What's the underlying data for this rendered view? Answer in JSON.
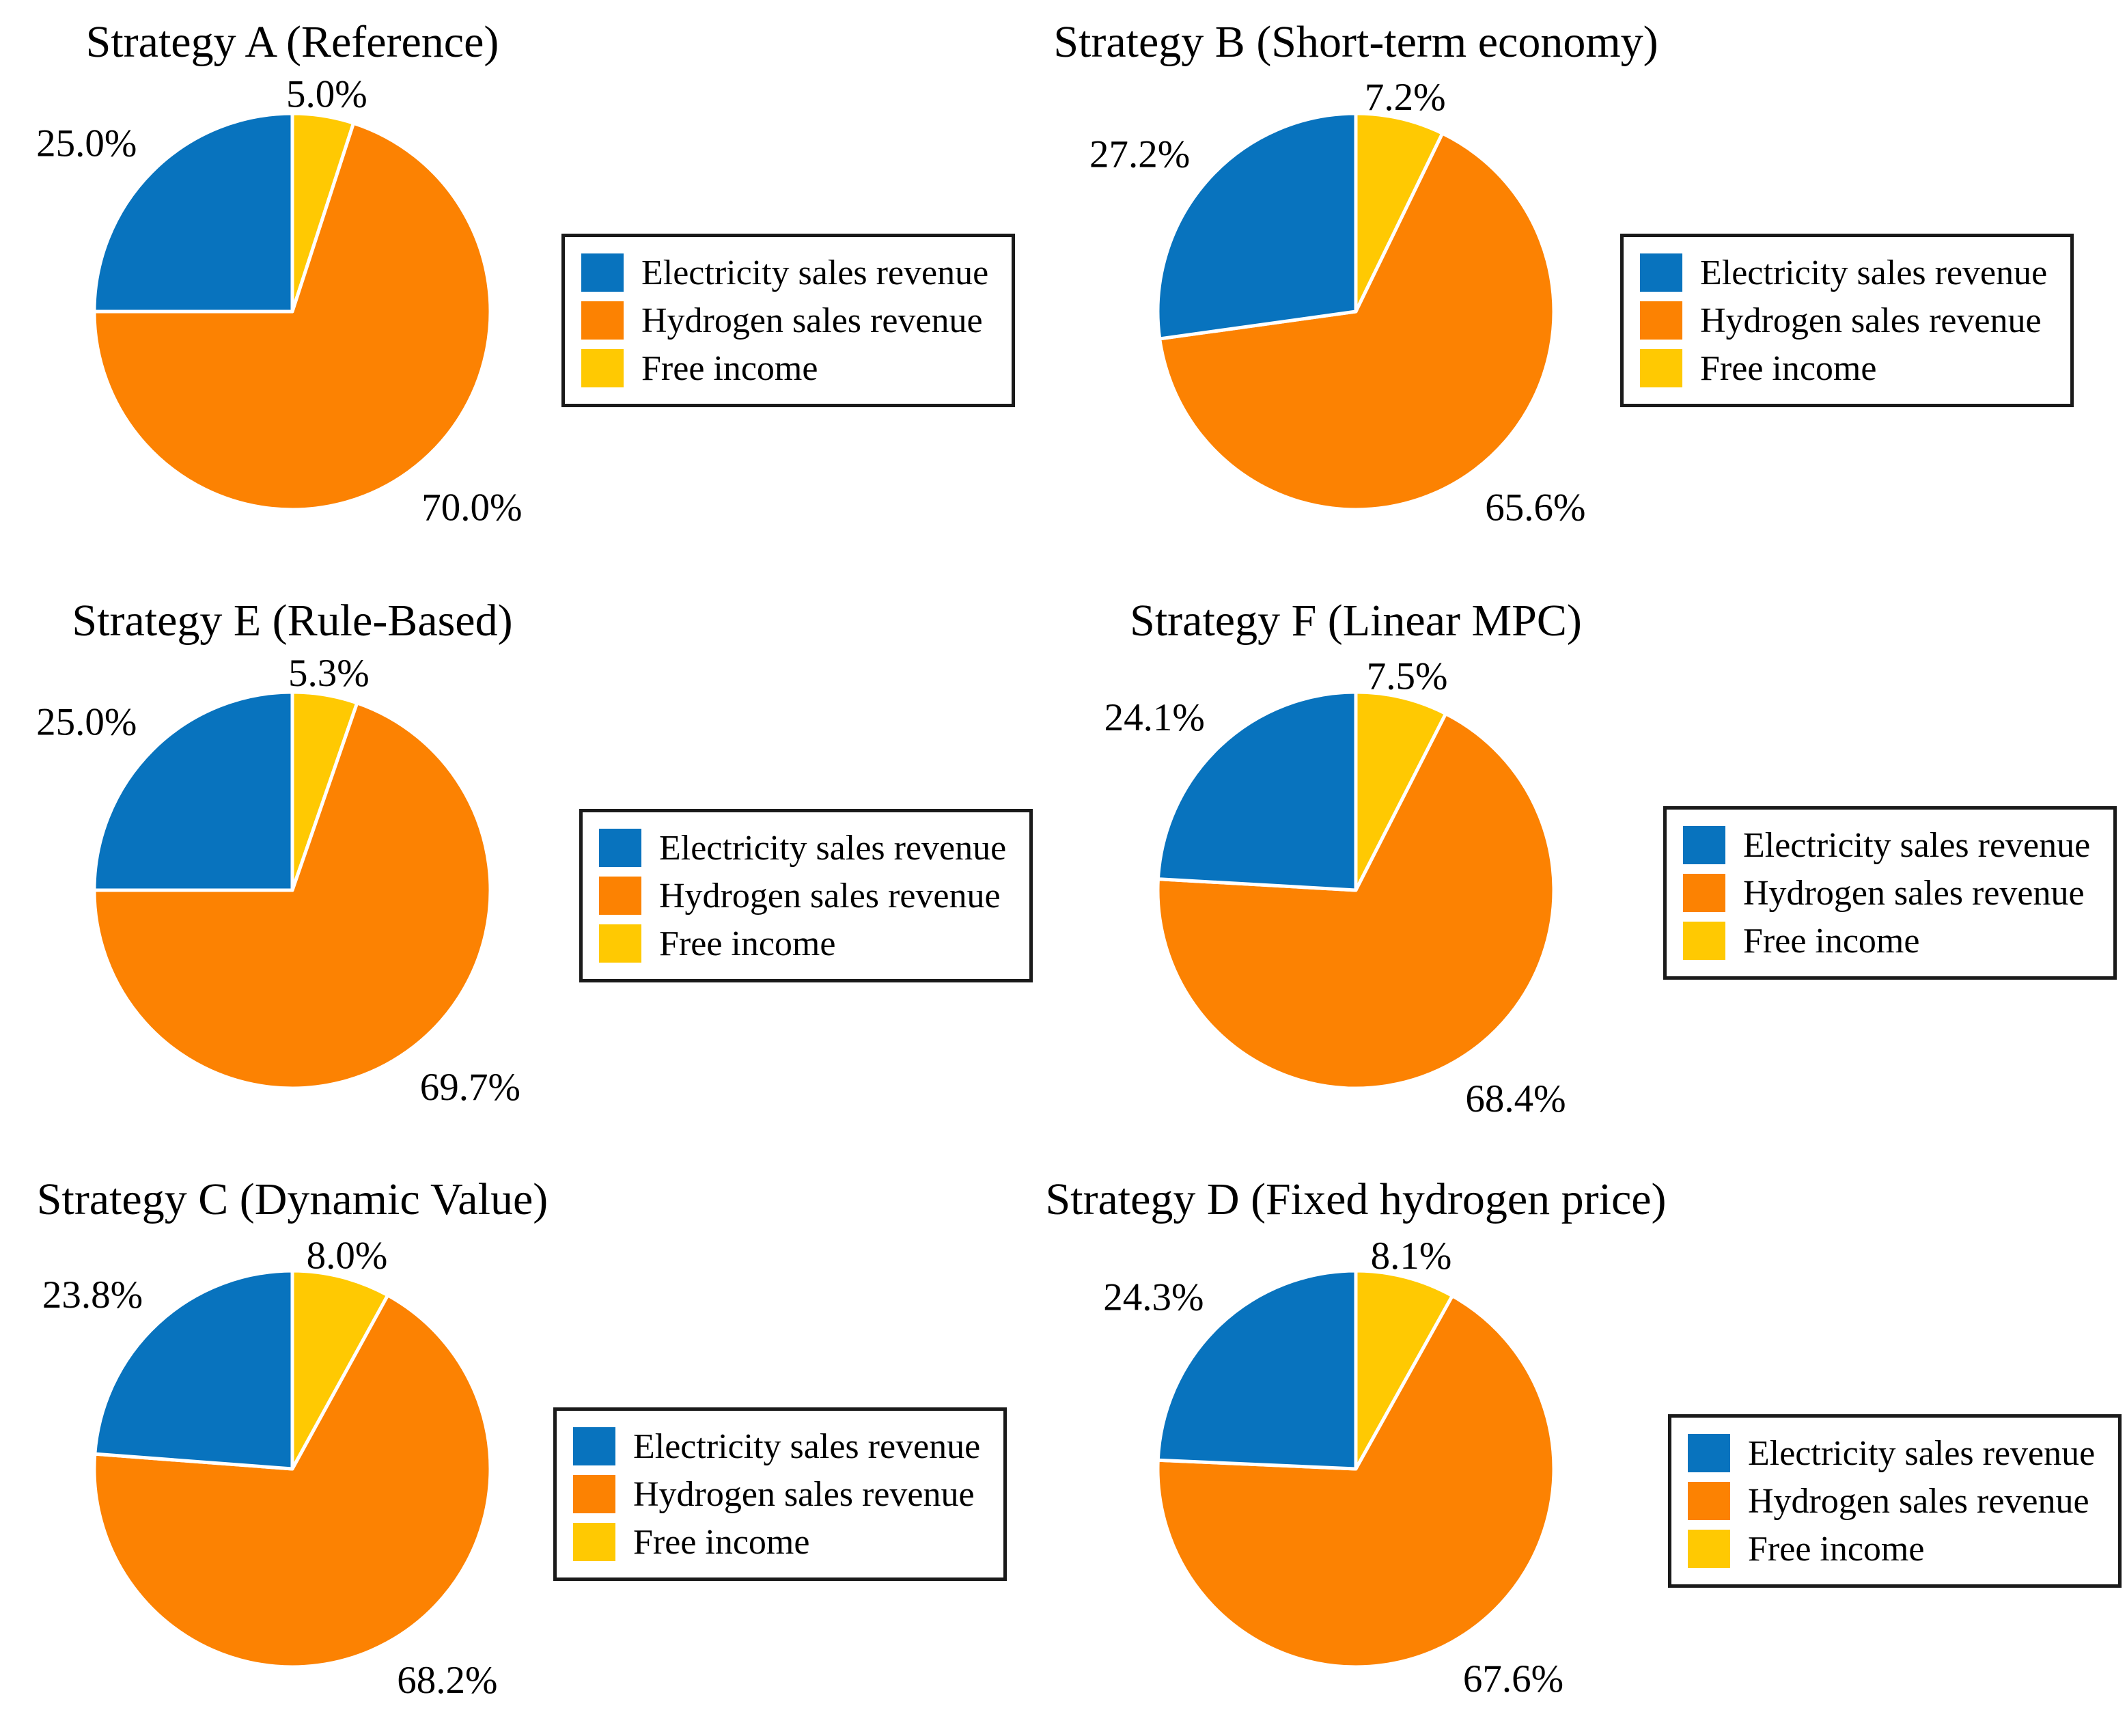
{
  "figure": {
    "background": "#ffffff",
    "text_color": "#000000"
  },
  "legend": {
    "border_color": "#1a1a1a",
    "items": [
      {
        "label": "Electricity sales revenue",
        "color": "#0873BE"
      },
      {
        "label": "Hydrogen sales revenue",
        "color": "#FC8202"
      },
      {
        "label": "Free income",
        "color": "#FFC902"
      }
    ]
  },
  "chart_data": [
    {
      "type": "pie",
      "title": "Strategy A (Reference)",
      "categories": [
        "Electricity sales revenue",
        "Hydrogen sales revenue",
        "Free income"
      ],
      "values": [
        25.0,
        70.0,
        5.0
      ],
      "slice_labels": [
        "25.0%",
        "70.0%",
        "5.0%"
      ],
      "start_angle_deg": 90,
      "direction": "counterclockwise",
      "legend_position": "right"
    },
    {
      "type": "pie",
      "title": "Strategy B (Short-term economy)",
      "categories": [
        "Electricity sales revenue",
        "Hydrogen sales revenue",
        "Free income"
      ],
      "values": [
        27.2,
        65.6,
        7.2
      ],
      "slice_labels": [
        "27.2%",
        "65.6%",
        "7.2%"
      ],
      "start_angle_deg": 90,
      "direction": "counterclockwise",
      "legend_position": "right"
    },
    {
      "type": "pie",
      "title": "Strategy E (Rule-Based)",
      "categories": [
        "Electricity sales revenue",
        "Hydrogen sales revenue",
        "Free income"
      ],
      "values": [
        25.0,
        69.7,
        5.3
      ],
      "slice_labels": [
        "25.0%",
        "69.7%",
        "5.3%"
      ],
      "start_angle_deg": 90,
      "direction": "counterclockwise",
      "legend_position": "right"
    },
    {
      "type": "pie",
      "title": "Strategy F (Linear MPC)",
      "categories": [
        "Electricity sales revenue",
        "Hydrogen sales revenue",
        "Free income"
      ],
      "values": [
        24.1,
        68.4,
        7.5
      ],
      "slice_labels": [
        "24.1%",
        "68.4%",
        "7.5%"
      ],
      "start_angle_deg": 90,
      "direction": "counterclockwise",
      "legend_position": "right"
    },
    {
      "type": "pie",
      "title": "Strategy C (Dynamic Value)",
      "categories": [
        "Electricity sales revenue",
        "Hydrogen sales revenue",
        "Free income"
      ],
      "values": [
        23.8,
        68.2,
        8.0
      ],
      "slice_labels": [
        "23.8%",
        "68.2%",
        "8.0%"
      ],
      "start_angle_deg": 90,
      "direction": "counterclockwise",
      "legend_position": "right"
    },
    {
      "type": "pie",
      "title": "Strategy D (Fixed hydrogen price)",
      "categories": [
        "Electricity sales revenue",
        "Hydrogen sales revenue",
        "Free income"
      ],
      "values": [
        24.3,
        67.6,
        8.1
      ],
      "slice_labels": [
        "24.3%",
        "67.6%",
        "8.1%"
      ],
      "start_angle_deg": 90,
      "direction": "counterclockwise",
      "legend_position": "right"
    }
  ]
}
